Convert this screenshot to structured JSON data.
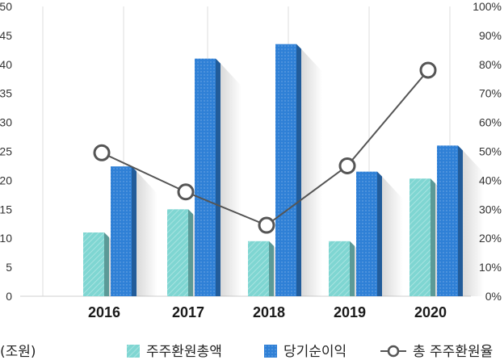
{
  "chart_data": {
    "type": "bar",
    "categories": [
      "2016",
      "2017",
      "2018",
      "2019",
      "2020"
    ],
    "series": [
      {
        "name": "주주환원총액",
        "type": "bar",
        "axis": "left",
        "values": [
          11,
          15,
          9.5,
          9.5,
          20.3
        ],
        "color": "#7fd6d2"
      },
      {
        "name": "당기순이익",
        "type": "bar",
        "axis": "left",
        "values": [
          22.4,
          41,
          43.5,
          21.5,
          26
        ],
        "color": "#2f80d6"
      },
      {
        "name": "총 주주환원율",
        "type": "line",
        "axis": "right",
        "values": [
          49.5,
          36,
          24.5,
          45,
          78
        ],
        "color": "#555555"
      }
    ],
    "ylim_left": [
      0,
      50
    ],
    "yticks_left": [
      "0",
      "5",
      "10",
      "15",
      "20",
      "25",
      "30",
      "35",
      "40",
      "45",
      "50"
    ],
    "ylim_right": [
      0,
      100
    ],
    "yticks_right": [
      "0%",
      "10%",
      "20%",
      "30%",
      "40%",
      "50%",
      "60%",
      "70%",
      "80%",
      "90%",
      "100%"
    ],
    "unit_label": "(조원)",
    "grid": "vertical",
    "legend_position": "bottom"
  }
}
